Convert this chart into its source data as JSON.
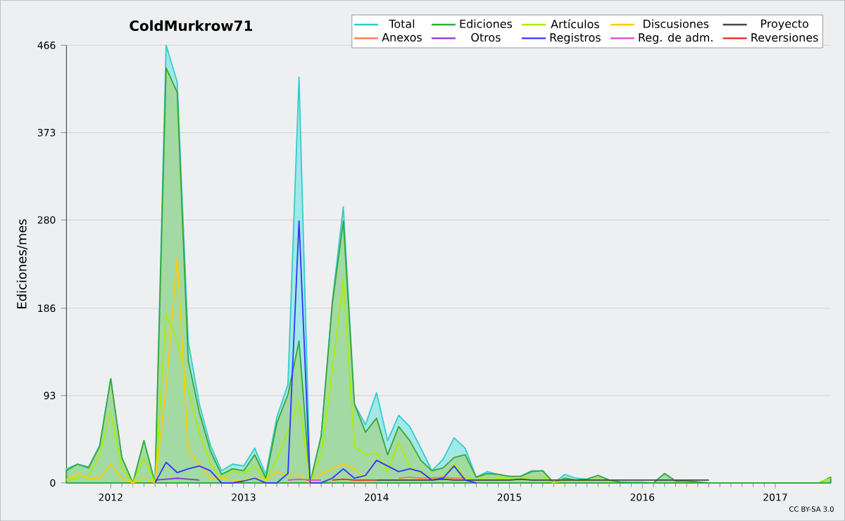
{
  "chart_data": {
    "type": "line",
    "title": "ColdMurkrow71",
    "ylabel": "Ediciones/mes",
    "annotations": [
      "CC BY-SA 3.0"
    ],
    "x": [
      "2011-09",
      "2011-10",
      "2011-11",
      "2011-12",
      "2012-01",
      "2012-02",
      "2012-03",
      "2012-04",
      "2012-05",
      "2012-06",
      "2012-07",
      "2012-08",
      "2012-09",
      "2012-10",
      "2012-11",
      "2012-12",
      "2013-01",
      "2013-02",
      "2013-03",
      "2013-04",
      "2013-05",
      "2013-06",
      "2013-07",
      "2013-08",
      "2013-09",
      "2013-10",
      "2013-11",
      "2013-12",
      "2014-01",
      "2014-02",
      "2014-03",
      "2014-04",
      "2014-05",
      "2014-06",
      "2014-07",
      "2014-08",
      "2014-09",
      "2014-10",
      "2014-11",
      "2014-12",
      "2015-01",
      "2015-02",
      "2015-03",
      "2015-04",
      "2015-05",
      "2015-06",
      "2015-07",
      "2015-08",
      "2015-09",
      "2015-10",
      "2015-11",
      "2015-12",
      "2016-01",
      "2016-02",
      "2016-03",
      "2016-04",
      "2016-05",
      "2016-06",
      "2016-07",
      "2016-08",
      "2016-09",
      "2016-10",
      "2016-11",
      "2016-12",
      "2017-01",
      "2017-02",
      "2017-03",
      "2017-04",
      "2017-05",
      "2017-06"
    ],
    "xlim": [
      "2011-09",
      "2017-06"
    ],
    "xticks": [
      {
        "value": "2012-01",
        "label": "2012"
      },
      {
        "value": "2013-01",
        "label": "2013"
      },
      {
        "value": "2014-01",
        "label": "2014"
      },
      {
        "value": "2015-01",
        "label": "2015"
      },
      {
        "value": "2016-01",
        "label": "2016"
      },
      {
        "value": "2017-01",
        "label": "2017"
      }
    ],
    "ylim": [
      0,
      466
    ],
    "yticks": [
      0,
      93,
      186,
      280,
      373,
      466
    ],
    "grid": "y",
    "legend": "top right",
    "series": [
      {
        "name": "Total",
        "type": "area",
        "color": "#33cccc",
        "values": [
          15,
          20,
          17,
          40,
          111,
          27,
          0,
          45,
          0,
          466,
          427,
          150,
          84,
          40,
          13,
          20,
          18,
          37,
          9,
          70,
          105,
          432,
          0,
          50,
          193,
          294,
          84,
          62,
          96,
          45,
          72,
          60,
          37,
          13,
          25,
          48,
          37,
          6,
          12,
          9,
          7,
          7,
          13,
          13,
          0,
          9,
          5,
          4,
          8,
          3,
          1,
          1,
          1,
          0,
          10,
          2,
          2,
          1,
          0,
          0,
          0,
          0,
          0,
          0,
          0,
          0,
          0,
          0,
          0,
          6
        ]
      },
      {
        "name": "Ediciones",
        "type": "area",
        "color": "#33aa33",
        "values": [
          13,
          20,
          16,
          39,
          111,
          27,
          0,
          45,
          0,
          442,
          416,
          130,
          75,
          34,
          9,
          15,
          13,
          30,
          5,
          64,
          94,
          151,
          0,
          50,
          190,
          279,
          84,
          54,
          69,
          30,
          60,
          45,
          24,
          13,
          16,
          27,
          30,
          6,
          10,
          9,
          7,
          7,
          12,
          13,
          0,
          5,
          3,
          4,
          8,
          3,
          1,
          0,
          0,
          0,
          10,
          2,
          2,
          1,
          0,
          0,
          0,
          0,
          0,
          0,
          0,
          0,
          0,
          0,
          0,
          6
        ]
      },
      {
        "name": "Artículos",
        "color": "#aaee00",
        "values": [
          3,
          5,
          8,
          30,
          75,
          15,
          0,
          27,
          0,
          180,
          151,
          99,
          54,
          20,
          5,
          13,
          10,
          18,
          3,
          25,
          55,
          87,
          0,
          30,
          120,
          217,
          39,
          30,
          32,
          12,
          43,
          18,
          10,
          5,
          5,
          20,
          6,
          3,
          6,
          5,
          4,
          4,
          6,
          6,
          0,
          3,
          3,
          2,
          4,
          2,
          null,
          null,
          null,
          null,
          null,
          null,
          null,
          null,
          null,
          null,
          null,
          null,
          null,
          null,
          null,
          null,
          null,
          null,
          1,
          5
        ]
      },
      {
        "name": "Discusiones",
        "color": "#ffcc00",
        "values": [
          3,
          10,
          5,
          5,
          20,
          5,
          0,
          5,
          0,
          100,
          240,
          34,
          20,
          5,
          5,
          3,
          3,
          5,
          3,
          12,
          8,
          8,
          0,
          10,
          15,
          20,
          15,
          5,
          null,
          null,
          null,
          null,
          null,
          null,
          null,
          null,
          null,
          null,
          null,
          null,
          null,
          null,
          null,
          null,
          null,
          null,
          null,
          null,
          null,
          null,
          null,
          null,
          null,
          null,
          null,
          null,
          null,
          null,
          null,
          null,
          null,
          null,
          null,
          null,
          null,
          null,
          null,
          null,
          null,
          null
        ]
      },
      {
        "name": "Proyecto",
        "color": "#444444",
        "values": [
          null,
          null,
          null,
          null,
          null,
          null,
          null,
          null,
          null,
          null,
          null,
          null,
          null,
          null,
          null,
          null,
          null,
          null,
          null,
          null,
          null,
          null,
          null,
          null,
          null,
          null,
          null,
          null,
          3,
          3,
          3,
          3,
          3,
          3,
          4,
          3,
          3,
          3,
          3,
          3,
          3,
          4,
          3,
          3,
          3,
          3,
          3,
          3,
          3,
          3,
          3,
          3,
          3,
          3,
          3,
          3,
          3,
          3,
          3,
          null,
          null,
          null,
          null,
          null,
          null,
          null,
          null,
          null,
          null,
          null
        ]
      },
      {
        "name": "Anexos",
        "color": "#ff7744",
        "values": [
          null,
          null,
          null,
          null,
          null,
          null,
          null,
          null,
          null,
          null,
          null,
          null,
          null,
          null,
          null,
          null,
          null,
          null,
          null,
          null,
          null,
          null,
          null,
          null,
          null,
          null,
          null,
          null,
          null,
          null,
          5,
          6,
          5,
          5,
          6,
          5,
          5,
          null,
          null,
          null,
          null,
          null,
          null,
          null,
          null,
          null,
          null,
          null,
          null,
          null,
          null,
          null,
          null,
          null,
          null,
          null,
          null,
          null,
          null,
          null,
          null,
          null,
          null,
          null,
          null,
          null,
          null,
          null,
          null,
          null
        ]
      },
      {
        "name": "Otros",
        "color": "#8833dd",
        "values": [
          null,
          null,
          null,
          null,
          null,
          null,
          null,
          null,
          3,
          4,
          5,
          4,
          3,
          null,
          null,
          null,
          null,
          null,
          null,
          null,
          null,
          null,
          null,
          null,
          null,
          null,
          null,
          null,
          null,
          null,
          null,
          null,
          null,
          null,
          null,
          null,
          null,
          null,
          null,
          null,
          null,
          null,
          null,
          null,
          null,
          null,
          null,
          null,
          null,
          null,
          null,
          null,
          null,
          null,
          null,
          null,
          null,
          null,
          null,
          null,
          null,
          null,
          null,
          null,
          null,
          null,
          null,
          null,
          null,
          null
        ]
      },
      {
        "name": "Registros",
        "color": "#3333ff",
        "values": [
          null,
          null,
          null,
          null,
          null,
          null,
          null,
          null,
          0,
          22,
          11,
          15,
          18,
          13,
          0,
          0,
          2,
          5,
          0,
          0,
          10,
          279,
          0,
          0,
          5,
          15,
          5,
          8,
          24,
          18,
          12,
          15,
          12,
          3,
          5,
          18,
          3,
          0,
          null,
          null,
          null,
          null,
          null,
          null,
          null,
          null,
          null,
          null,
          null,
          null,
          null,
          null,
          null,
          null,
          null,
          null,
          null,
          null,
          null,
          null,
          null,
          null,
          null,
          null,
          null,
          null,
          null,
          null,
          null,
          null
        ]
      },
      {
        "name": "Reg. de adm.",
        "color": "#dd44dd",
        "values": [
          null,
          null,
          null,
          null,
          null,
          null,
          null,
          null,
          null,
          null,
          null,
          null,
          null,
          null,
          null,
          null,
          null,
          null,
          null,
          null,
          3,
          4,
          3,
          3,
          null,
          null,
          null,
          null,
          null,
          null,
          null,
          null,
          null,
          null,
          null,
          null,
          null,
          null,
          null,
          null,
          null,
          null,
          null,
          null,
          null,
          null,
          null,
          null,
          null,
          null,
          null,
          null,
          null,
          null,
          null,
          null,
          null,
          null,
          null,
          null,
          null,
          null,
          null,
          null,
          null,
          null,
          null,
          null,
          null,
          null
        ]
      },
      {
        "name": "Reversiones",
        "color": "#ee2222",
        "values": [
          null,
          null,
          null,
          null,
          null,
          null,
          null,
          null,
          null,
          null,
          null,
          null,
          null,
          null,
          null,
          null,
          null,
          null,
          null,
          null,
          null,
          null,
          null,
          null,
          3,
          4,
          3,
          3,
          3,
          null,
          null,
          null,
          null,
          null,
          null,
          null,
          null,
          null,
          null,
          null,
          null,
          null,
          null,
          null,
          null,
          null,
          null,
          null,
          null,
          null,
          null,
          null,
          null,
          null,
          null,
          null,
          null,
          null,
          null,
          null,
          null,
          null,
          null,
          null,
          null,
          null,
          null,
          null,
          null,
          null
        ]
      }
    ]
  }
}
